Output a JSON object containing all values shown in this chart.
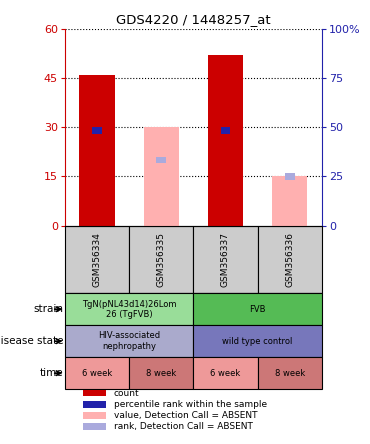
{
  "title": "GDS4220 / 1448257_at",
  "samples": [
    "GSM356334",
    "GSM356335",
    "GSM356337",
    "GSM356336"
  ],
  "count_values": [
    46,
    0,
    52,
    0
  ],
  "rank_values": [
    29,
    0,
    29,
    0
  ],
  "absent_value_values": [
    0,
    30,
    0,
    15
  ],
  "absent_rank_values": [
    0,
    20,
    0,
    15
  ],
  "ylim_left": [
    0,
    60
  ],
  "ylim_right": [
    0,
    100
  ],
  "yticks_left": [
    0,
    15,
    30,
    45,
    60
  ],
  "yticks_right": [
    0,
    25,
    50,
    75,
    100
  ],
  "bar_width": 0.55,
  "count_color": "#CC0000",
  "rank_color": "#2222AA",
  "absent_value_color": "#FFB0B0",
  "absent_rank_color": "#AAAADD",
  "left_axis_color": "#CC0000",
  "right_axis_color": "#2222AA",
  "sample_bg_color": "#CCCCCC",
  "row_data": [
    {
      "label": "strain",
      "spans": [
        {
          "start": 0,
          "end": 2,
          "text": "TgN(pNL43d14)26Lom\n26 (TgFVB)",
          "color": "#99DD99"
        },
        {
          "start": 2,
          "end": 4,
          "text": "FVB",
          "color": "#55BB55"
        }
      ]
    },
    {
      "label": "disease state",
      "spans": [
        {
          "start": 0,
          "end": 2,
          "text": "HIV-associated\nnephropathy",
          "color": "#AAAACC"
        },
        {
          "start": 2,
          "end": 4,
          "text": "wild type control",
          "color": "#7777BB"
        }
      ]
    },
    {
      "label": "time",
      "spans": [
        {
          "start": 0,
          "end": 1,
          "text": "6 week",
          "color": "#EE9999"
        },
        {
          "start": 1,
          "end": 2,
          "text": "8 week",
          "color": "#CC7777"
        },
        {
          "start": 2,
          "end": 3,
          "text": "6 week",
          "color": "#EE9999"
        },
        {
          "start": 3,
          "end": 4,
          "text": "8 week",
          "color": "#CC7777"
        }
      ]
    }
  ],
  "legend_items": [
    {
      "label": "count",
      "color": "#CC0000"
    },
    {
      "label": "percentile rank within the sample",
      "color": "#2222AA"
    },
    {
      "label": "value, Detection Call = ABSENT",
      "color": "#FFB0B0"
    },
    {
      "label": "rank, Detection Call = ABSENT",
      "color": "#AAAADD"
    }
  ]
}
